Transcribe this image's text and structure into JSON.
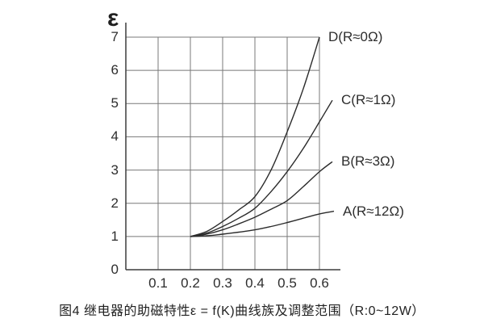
{
  "figure": {
    "axis_title": "ε",
    "caption": "图4 继电器的助磁特性ε = f(K)曲线族及调整范围（R:0~12W）"
  },
  "colors": {
    "curve": "#2b2b2b",
    "grid": "#787878",
    "axis": "#3c3c3c",
    "text": "#2d2d2d",
    "background": "#ffffff"
  },
  "chart_data": {
    "type": "line",
    "title": "图4 继电器的助磁特性ε = f(K)曲线族及调整范围（R:0~12W）",
    "xlabel": "",
    "ylabel": "ε",
    "xlim": [
      0,
      0.6
    ],
    "ylim": [
      0,
      7
    ],
    "x_ticks": [
      "0.1",
      "0.2",
      "0.3",
      "0.4",
      "0.5",
      "0.6"
    ],
    "y_ticks": [
      "0",
      "1",
      "2",
      "3",
      "4",
      "5",
      "6",
      "7"
    ],
    "grid": true,
    "legend_position": "labels-at-curve-ends",
    "series": [
      {
        "name": "D(R≈0Ω)",
        "points": [
          [
            0.2,
            1.0
          ],
          [
            0.25,
            1.15
          ],
          [
            0.3,
            1.45
          ],
          [
            0.35,
            1.8
          ],
          [
            0.4,
            2.2
          ],
          [
            0.45,
            3.0
          ],
          [
            0.5,
            4.15
          ],
          [
            0.55,
            5.45
          ],
          [
            0.6,
            7.0
          ]
        ]
      },
      {
        "name": "C(R≈1Ω)",
        "points": [
          [
            0.2,
            1.0
          ],
          [
            0.25,
            1.1
          ],
          [
            0.3,
            1.3
          ],
          [
            0.35,
            1.55
          ],
          [
            0.4,
            1.85
          ],
          [
            0.45,
            2.35
          ],
          [
            0.5,
            2.95
          ],
          [
            0.55,
            3.65
          ],
          [
            0.6,
            4.45
          ],
          [
            0.64,
            5.1
          ]
        ]
      },
      {
        "name": "B(R≈3Ω)",
        "points": [
          [
            0.2,
            1.0
          ],
          [
            0.25,
            1.07
          ],
          [
            0.3,
            1.2
          ],
          [
            0.35,
            1.38
          ],
          [
            0.4,
            1.58
          ],
          [
            0.45,
            1.82
          ],
          [
            0.5,
            2.08
          ],
          [
            0.55,
            2.5
          ],
          [
            0.6,
            2.95
          ],
          [
            0.64,
            3.25
          ]
        ]
      },
      {
        "name": "A(R≈12Ω)",
        "points": [
          [
            0.2,
            1.0
          ],
          [
            0.25,
            1.02
          ],
          [
            0.3,
            1.07
          ],
          [
            0.35,
            1.13
          ],
          [
            0.4,
            1.2
          ],
          [
            0.45,
            1.3
          ],
          [
            0.5,
            1.42
          ],
          [
            0.55,
            1.55
          ],
          [
            0.6,
            1.68
          ],
          [
            0.645,
            1.76
          ]
        ]
      }
    ]
  }
}
